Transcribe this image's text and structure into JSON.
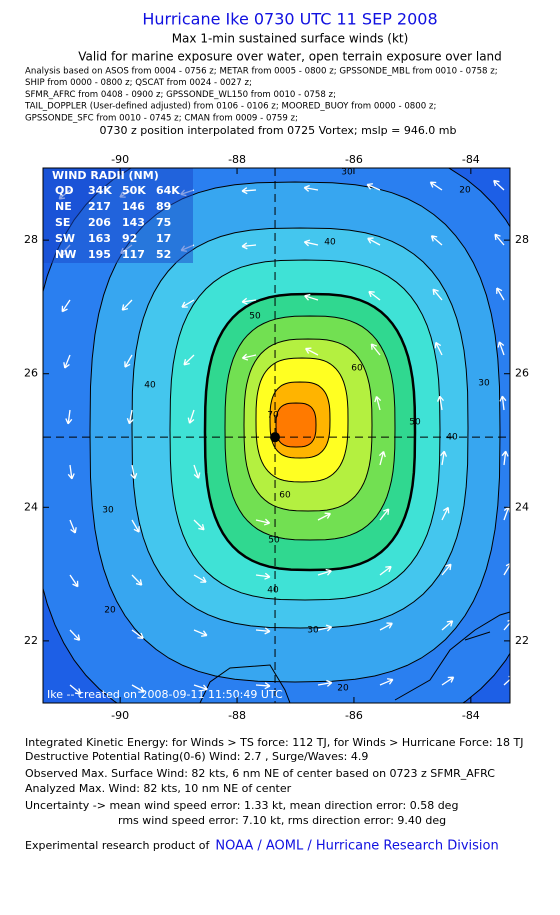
{
  "title": "Hurricane Ike 0730 UTC 11 SEP 2008",
  "subtitle": "Max 1-min sustained surface winds (kt)",
  "validity": "Valid for marine exposure over water, open terrain exposure over land",
  "analysis_lines": [
    "Analysis based on  ASOS from 0004 - 0756 z;  METAR from 0005 - 0800 z;  GPSSONDE_MBL from 0010 - 0758 z;",
    "SHIP from 0000 - 0800 z;  QSCAT from 0024 - 0027 z;",
    "SFMR_AFRC from 0408 - 0900 z;  GPSSONDE_WL150 from 0010 - 0758 z;",
    "TAIL_DOPPLER (User-defined adjusted) from 0106 - 0106 z;  MOORED_BUOY from 0000 - 0800 z;",
    "GPSSONDE_SFC from 0010 - 0745 z;  CMAN from 0009 - 0759 z;"
  ],
  "position_note": "0730 z position interpolated from 0725 Vortex; mslp = 946.0 mb",
  "map": {
    "xlim": [
      -91.32,
      -83.33
    ],
    "ylim": [
      21.07,
      29.08
    ],
    "xticks": [
      -90,
      -88,
      -86,
      -84
    ],
    "yticks": [
      22,
      24,
      26,
      28
    ],
    "center": {
      "lon": -87.35,
      "lat": 25.05
    },
    "wind_radii": {
      "title": "WIND RADII (NM)",
      "header": [
        "QD",
        "34K",
        "50K",
        "64K"
      ],
      "rows": [
        [
          "NE",
          217,
          146,
          89
        ],
        [
          "SE",
          206,
          143,
          75
        ],
        [
          "SW",
          163,
          92,
          17
        ],
        [
          "NW",
          195,
          117,
          52
        ]
      ]
    },
    "contour_labels": [
      30,
      20,
      40,
      50,
      60,
      30,
      40,
      50,
      40,
      60,
      50,
      40,
      30,
      30,
      20,
      20,
      70
    ],
    "credit": "Ike -- created on 2008-09-11 11:50:49 UTC"
  },
  "footer": {
    "ike": "Integrated Kinetic Energy:  for Winds > TS force: 112 TJ,  for Winds > Hurricane Force: 18 TJ",
    "dpr": "Destructive Potential Rating(0-6)   Wind: 2.7 , Surge/Waves: 4.9",
    "observed": "Observed Max. Surface Wind: 82 kts, 6 nm NE of center based on 0723 z SFMR_AFRC",
    "analyzed": "Analyzed Max. Wind: 82 kts, 10 nm NE of center",
    "uncertainty_mean": "Uncertainty -> mean wind speed error: 1.33 kt,   mean direction error: 0.58 deg",
    "uncertainty_rms": "rms wind speed error: 7.10 kt,   rms direction error: 9.40 deg",
    "product_prefix": "Experimental research product of",
    "product_link": "NOAA / AOML / Hurricane Research Division"
  }
}
